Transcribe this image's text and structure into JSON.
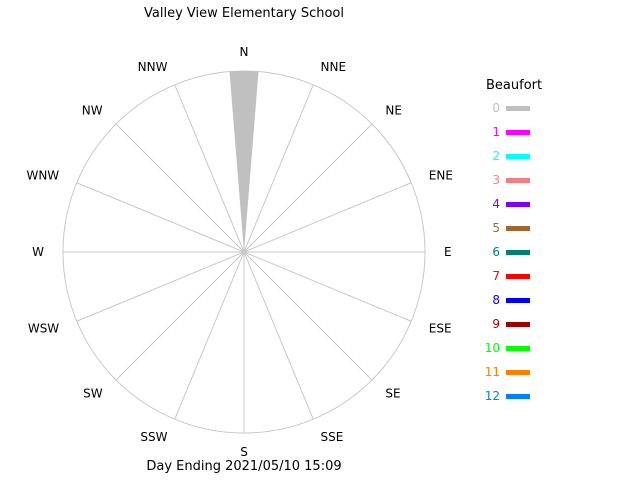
{
  "chart_data": {
    "type": "wind-rose",
    "title": "Valley View Elementary School",
    "footer": "Day Ending 2021/05/10 15:09",
    "directions": [
      "N",
      "NNE",
      "NE",
      "ENE",
      "E",
      "ESE",
      "SE",
      "SSE",
      "S",
      "SSW",
      "SW",
      "WSW",
      "W",
      "WNW",
      "NW",
      "NNW"
    ],
    "series": [
      {
        "direction": "N",
        "beaufort": 0,
        "value": 1.0
      }
    ],
    "legend": {
      "title": "Beaufort",
      "items": [
        {
          "label": "0",
          "color": "#c0c0c0"
        },
        {
          "label": "1",
          "color": "#ff00ff"
        },
        {
          "label": "2",
          "color": "#00ffff"
        },
        {
          "label": "3",
          "color": "#f08080"
        },
        {
          "label": "4",
          "color": "#8000ff"
        },
        {
          "label": "5",
          "color": "#a0662e"
        },
        {
          "label": "6",
          "color": "#008070"
        },
        {
          "label": "7",
          "color": "#ff0000"
        },
        {
          "label": "8",
          "color": "#0000ff"
        },
        {
          "label": "9",
          "color": "#a00000"
        },
        {
          "label": "10",
          "color": "#00ff00"
        },
        {
          "label": "11",
          "color": "#ff8000"
        },
        {
          "label": "12",
          "color": "#0080ff"
        }
      ]
    },
    "grid_color": "#c8c8c8",
    "grid": true,
    "legend_placement": "right"
  }
}
